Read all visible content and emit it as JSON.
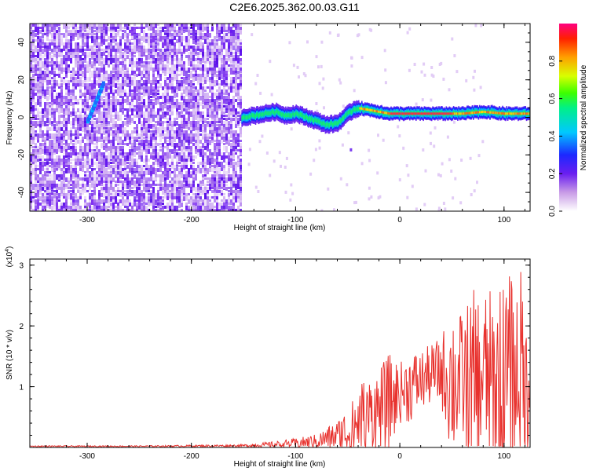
{
  "title": "C2E6.2025.362.00.03.G11",
  "chart_data": [
    {
      "type": "heatmap",
      "xlabel": "Height of straight line (km)",
      "ylabel": "Frequency (Hz)",
      "xlim": [
        -355,
        125
      ],
      "ylim": [
        -50,
        50
      ],
      "xticks": [
        -300,
        -200,
        -100,
        0,
        100
      ],
      "yticks": [
        -40,
        -20,
        0,
        20,
        40
      ],
      "noise_region": [
        -355,
        -152
      ],
      "signal_track": {
        "x": [
          -152,
          -140,
          -130,
          -120,
          -110,
          -100,
          -90,
          -80,
          -70,
          -60,
          -50,
          -45,
          -40,
          -30,
          -20,
          -10,
          0,
          20,
          40,
          60,
          80,
          100,
          125
        ],
        "freq_hz": [
          0,
          1,
          2,
          3,
          1,
          2,
          0,
          -2,
          -4,
          -3,
          2,
          4,
          5,
          4,
          3,
          2,
          2,
          2,
          2,
          2,
          3,
          2,
          2
        ]
      },
      "streak": {
        "x": [
          -300,
          -285
        ],
        "freq_hz": [
          -2,
          18
        ]
      },
      "colorbar": {
        "label": "Normalized spectral amplitude",
        "ticks": [
          "0.0",
          "0.2",
          "0.4",
          "0.6",
          "0.8"
        ],
        "range": [
          0,
          1
        ]
      }
    },
    {
      "type": "line",
      "xlabel": "Height of straight line (km)",
      "ylabel": "SNR (10 * v/v)",
      "multiplier_base": "(x10",
      "multiplier_exp": "4",
      "multiplier_close": ")",
      "xlim": [
        -355,
        125
      ],
      "ylim": [
        0,
        3.1
      ],
      "xticks": [
        -300,
        -200,
        -100,
        0,
        100
      ],
      "yticks": [
        1,
        2,
        3
      ],
      "color": "#e8312d",
      "envelope": {
        "x": [
          -355,
          -250,
          -150,
          -120,
          -100,
          -80,
          -60,
          -45,
          -40,
          -30,
          -20,
          -10,
          0,
          10,
          20,
          30,
          40,
          50,
          60,
          70,
          80,
          90,
          100,
          110,
          120,
          125
        ],
        "base": [
          0.02,
          0.02,
          0.03,
          0.05,
          0.07,
          0.1,
          0.2,
          0.3,
          0.45,
          0.55,
          0.6,
          0.75,
          0.9,
          1.0,
          1.1,
          1.2,
          1.25,
          1.1,
          1.1,
          1.0,
          1.2,
          1.0,
          1.1,
          1.3,
          1.2,
          1.2
        ],
        "amp": [
          0.01,
          0.01,
          0.02,
          0.05,
          0.08,
          0.12,
          0.25,
          0.5,
          0.7,
          0.6,
          0.7,
          0.8,
          0.5,
          0.6,
          0.5,
          0.5,
          0.6,
          1.3,
          1.1,
          1.6,
          1.4,
          1.6,
          1.7,
          1.6,
          1.8,
          1.8
        ]
      }
    }
  ]
}
